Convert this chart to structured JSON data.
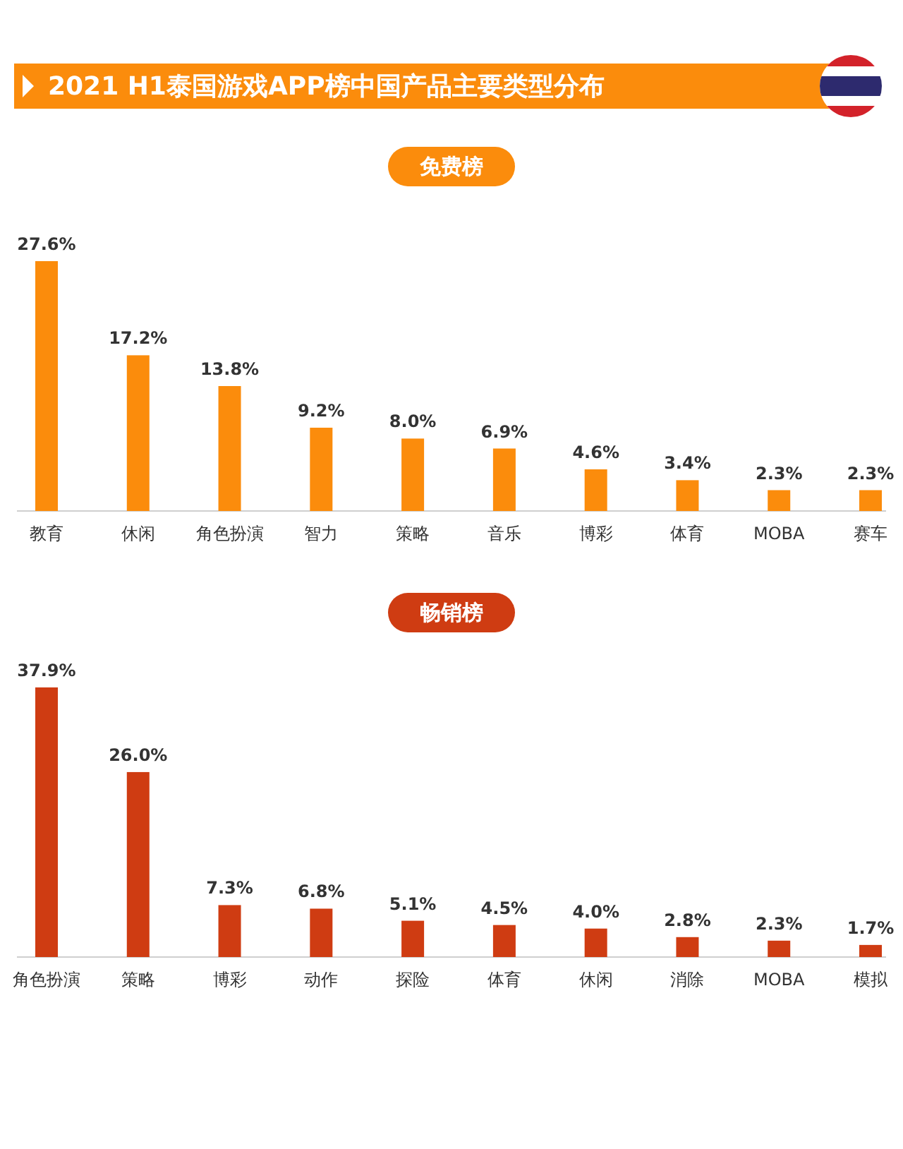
{
  "chart_data": [
    {
      "type": "bar",
      "title": "2021 H1泰国游戏APP榜中国产品主要类型分布",
      "subtitle": "免费榜",
      "categories": [
        "教育",
        "休闲",
        "角色扮演",
        "智力",
        "策略",
        "音乐",
        "博彩",
        "体育",
        "MOBA",
        "赛车"
      ],
      "values": [
        27.6,
        17.2,
        13.8,
        9.2,
        8.0,
        6.9,
        4.6,
        3.4,
        2.3,
        2.3
      ],
      "value_labels": [
        "27.6%",
        "17.2%",
        "13.8%",
        "9.2%",
        "8.0%",
        "6.9%",
        "4.6%",
        "3.4%",
        "2.3%",
        "2.3%"
      ],
      "color": "#fb8c0c"
    },
    {
      "type": "bar",
      "title": "畅销榜",
      "categories": [
        "角色扮演",
        "策略",
        "博彩",
        "动作",
        "探险",
        "体育",
        "休闲",
        "消除",
        "MOBA",
        "模拟"
      ],
      "values": [
        37.9,
        26.0,
        7.3,
        6.8,
        5.1,
        4.5,
        4.0,
        2.8,
        2.3,
        1.7
      ],
      "value_labels": [
        "37.9%",
        "26.0%",
        "7.3%",
        "6.8%",
        "5.1%",
        "4.5%",
        "4.0%",
        "2.8%",
        "2.3%",
        "1.7%"
      ],
      "color": "#cf3c12"
    }
  ]
}
